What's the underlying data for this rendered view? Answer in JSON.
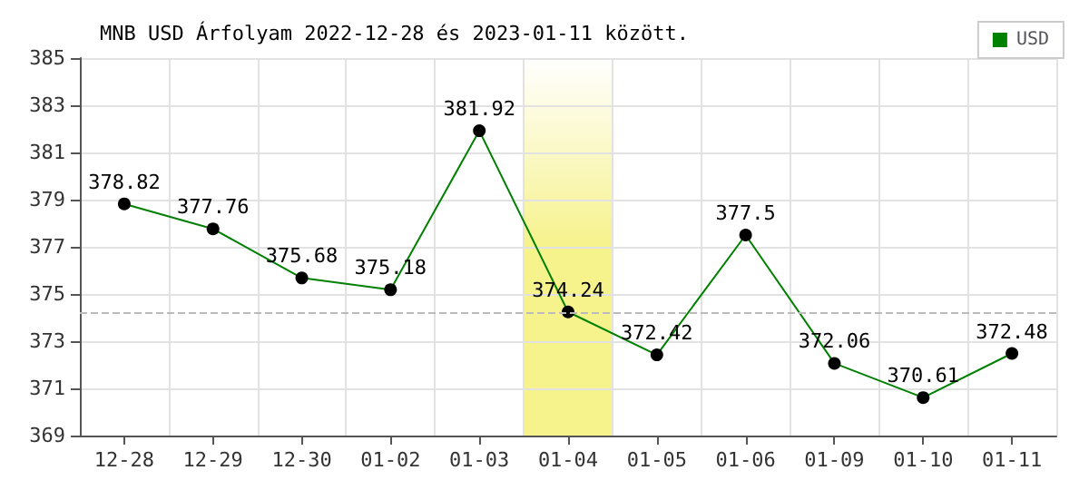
{
  "chart_data": {
    "type": "line",
    "title": "MNB USD Árfolyam 2022-12-28 és 2023-01-11 között.",
    "categories": [
      "12-28",
      "12-29",
      "12-30",
      "01-02",
      "01-03",
      "01-04",
      "01-05",
      "01-06",
      "01-09",
      "01-10",
      "01-11"
    ],
    "series": [
      {
        "name": "USD",
        "color": "#008000",
        "values": [
          378.82,
          377.76,
          375.68,
          375.18,
          381.92,
          374.24,
          372.42,
          377.5,
          372.06,
          370.61,
          372.48
        ]
      }
    ],
    "ylim": [
      369,
      385
    ],
    "yticks": [
      369,
      371,
      373,
      375,
      377,
      379,
      381,
      383,
      385
    ],
    "ref_lines": [
      {
        "axis": "y",
        "value": 374.24,
        "color": "#bbbbbb",
        "line_style": "dashed"
      }
    ],
    "bands": [
      {
        "axis": "x",
        "from": "01-04",
        "to": "01-04",
        "color": "#f6f28c"
      }
    ],
    "grid": true,
    "legend": "top right",
    "marker": "circle",
    "line_style": "solid",
    "data_labels": true
  }
}
